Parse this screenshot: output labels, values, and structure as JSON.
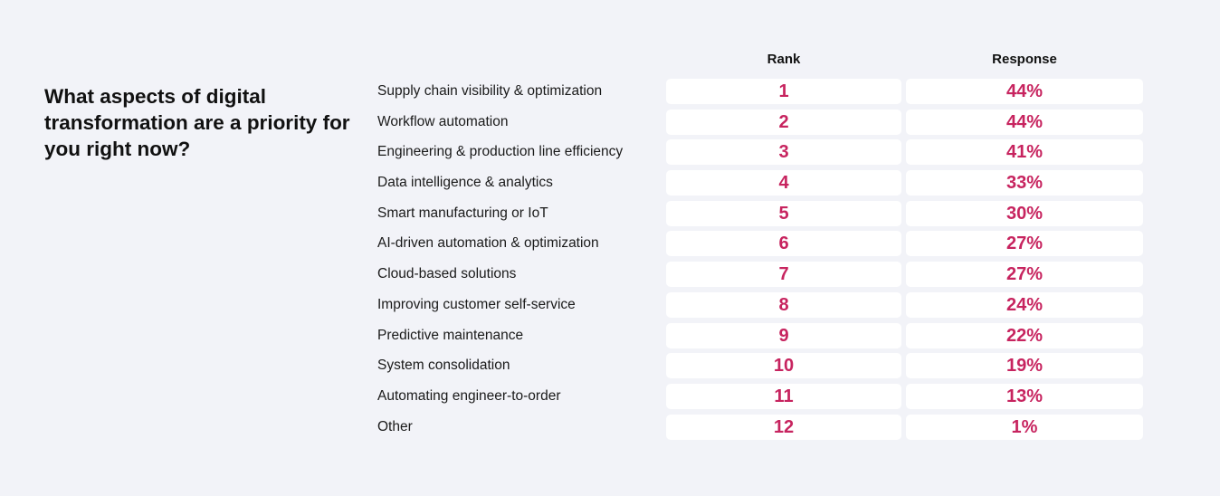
{
  "question": "What aspects of digital transformation are a priority for you right now?",
  "colors": {
    "background": "#f2f3f8",
    "accent": "#c7245f",
    "cell_background": "#ffffff"
  },
  "chart_data": {
    "type": "table",
    "title": "What aspects of digital transformation are a priority for you right now?",
    "columns": [
      "Rank",
      "Response"
    ],
    "rows": [
      {
        "label": "Supply chain visibility & optimization",
        "rank": "1",
        "response": "44%"
      },
      {
        "label": "Workflow automation",
        "rank": "2",
        "response": "44%"
      },
      {
        "label": "Engineering & production line efficiency",
        "rank": "3",
        "response": "41%"
      },
      {
        "label": "Data intelligence & analytics",
        "rank": "4",
        "response": "33%"
      },
      {
        "label": "Smart manufacturing or IoT",
        "rank": "5",
        "response": "30%"
      },
      {
        "label": "AI-driven automation & optimization",
        "rank": "6",
        "response": "27%"
      },
      {
        "label": "Cloud-based solutions",
        "rank": "7",
        "response": "27%"
      },
      {
        "label": "Improving customer self-service",
        "rank": "8",
        "response": "24%"
      },
      {
        "label": "Predictive maintenance",
        "rank": "9",
        "response": "22%"
      },
      {
        "label": "System consolidation",
        "rank": "10",
        "response": "19%"
      },
      {
        "label": "Automating engineer-to-order",
        "rank": "11",
        "response": "13%"
      },
      {
        "label": "Other",
        "rank": "12",
        "response": "1%"
      }
    ]
  }
}
